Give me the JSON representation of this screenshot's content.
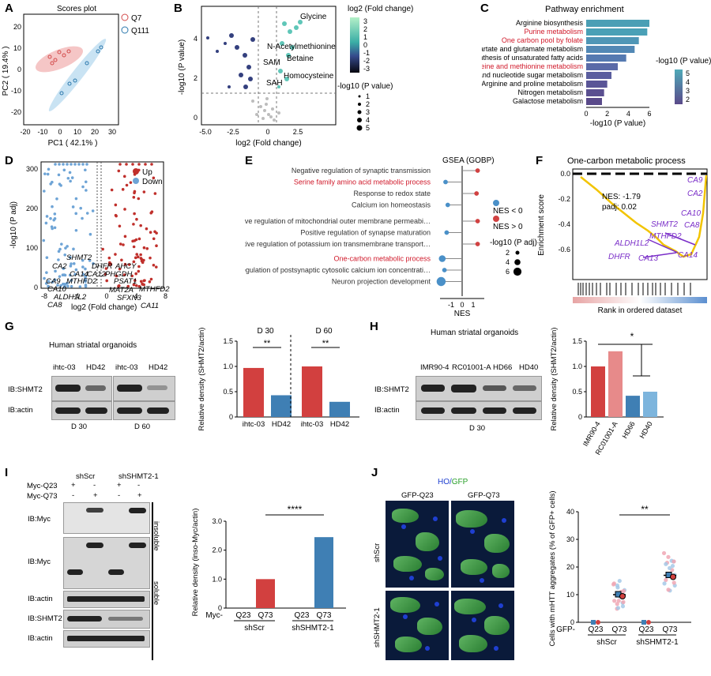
{
  "panels": {
    "a": "A",
    "b": "B",
    "c": "C",
    "d": "D",
    "e": "E",
    "f": "F",
    "g": "G",
    "h": "H",
    "i": "I",
    "j": "J"
  },
  "A": {
    "title": "Scores plot",
    "xlabel": "PC1 ( 42.1% )",
    "ylabel": "PC2 ( 19.4% )",
    "legend": [
      "Q7",
      "Q111"
    ],
    "colors": {
      "q7": "#e07a7a",
      "q111": "#5aa7d6"
    },
    "xticks": [
      "-20",
      "-10",
      "0",
      "10",
      "20",
      "30"
    ],
    "yticks": [
      "-20",
      "-10",
      "0",
      "10",
      "20"
    ]
  },
  "B": {
    "xlabel": "log2 (Fold change)",
    "ylabel": "-log10 (P value)",
    "xticks": [
      "-5.0",
      "-2.5",
      "0",
      "2.5"
    ],
    "yticks": [
      "0",
      "2",
      "4"
    ],
    "labels": [
      "Glycine",
      "N-Acetylmethionine",
      "Betaine",
      "SAM",
      "Homocysteine",
      "SAH"
    ],
    "colorbar_title": "log2 (Fold change)",
    "colorbar_ticks": [
      "3",
      "2",
      "1",
      "0",
      "-1",
      "-2",
      "-3"
    ],
    "size_title": "-log10 (P value)",
    "size_ticks": [
      "1",
      "2",
      "3",
      "4",
      "5"
    ]
  },
  "C": {
    "title": "Pathway enrichment",
    "xlabel": "-log10 (P value)",
    "xticks": [
      "0",
      "2",
      "4",
      "6"
    ],
    "legend_title": "-log10 (P value)",
    "legend_ticks": [
      "5",
      "4",
      "3",
      "2"
    ],
    "red_color": "#d0192a"
  },
  "D": {
    "xlabel": "log2 (Fold change)",
    "ylabel": "-log10 (P adj)",
    "xticks": [
      "-8",
      "-4",
      "0",
      "4",
      "8"
    ],
    "yticks": [
      "0",
      "100",
      "200",
      "300"
    ],
    "legend": [
      "Up",
      "Down"
    ],
    "genes": [
      "SHMT2",
      "CA2",
      "CA14",
      "CA12",
      "CA9",
      "MTHFD2",
      "CA10",
      "ALDH1L2",
      "CA8",
      "DHFR",
      "AHCY",
      "PHGDH",
      "MAT2A",
      "PSAT1",
      "MTHFD2L",
      "CA11",
      "SFXN3"
    ]
  },
  "E": {
    "title": "GSEA (GOBP)",
    "xlabel": "NES",
    "xticks": [
      "-1",
      "0",
      "1"
    ],
    "legend_neg": "NES < 0",
    "legend_pos": "NES > 0",
    "size_title": "-log10 (P adj)",
    "size_ticks": [
      "2",
      "4",
      "6"
    ]
  },
  "F": {
    "title": "One-carbon metabolic process",
    "ylabel": "Enrichment score",
    "xlabel": "Rank in ordered dataset",
    "stats": [
      "NES: -1.79",
      "padj: 0.02"
    ],
    "yticks": [
      "0.0",
      "-0.2",
      "-0.4",
      "-0.6"
    ],
    "genes": [
      "CA9",
      "CA2",
      "CA10",
      "SHMT2",
      "CA8",
      "MTHFD2",
      "ALDH1L2",
      "CA14",
      "DHFR",
      "CA13"
    ]
  },
  "G": {
    "title": "Human striatal organoids",
    "lanes_d30": [
      "ihtc-03",
      "HD42"
    ],
    "lanes_d60": [
      "ihtc-03",
      "HD42"
    ],
    "ib": [
      "IB:SHMT2",
      "IB:actin"
    ],
    "days": [
      "D 30",
      "D 60"
    ],
    "ylabel": "Relative density (SHMT2/actin)",
    "yticks": [
      "0",
      "0.5",
      "1.0",
      "1.5"
    ],
    "sig": [
      "**",
      "**"
    ]
  },
  "H": {
    "title": "Human striatal organoids",
    "lanes": [
      "IMR90-4",
      "RC01001-A",
      "HD66",
      "HD40"
    ],
    "ib": [
      "IB:SHMT2",
      "IB:actin"
    ],
    "day": "D 30",
    "ylabel": "Relative density (SHMT2/actin)",
    "yticks": [
      "0",
      "0.5",
      "1.0",
      "1.5"
    ],
    "sig": "*"
  },
  "I": {
    "groups": [
      "shScr",
      "shSHMT2-1"
    ],
    "rows": [
      "Myc-Q23",
      "Myc-Q73"
    ],
    "pm": [
      "+",
      "-",
      "+",
      "-",
      "-",
      "+",
      "-",
      "+"
    ],
    "ib": [
      "IB:Myc",
      "IB:Myc",
      "IB:actin",
      "IB:SHMT2",
      "IB:actin"
    ],
    "fractions": [
      "insoluble",
      "soluble"
    ],
    "ylabel": "Relative density (inso-Myc/actin)",
    "yticks": [
      "0",
      "1.0",
      "2.0",
      "3.0"
    ],
    "xgroups": [
      "Q23",
      "Q73",
      "Q23",
      "Q73"
    ],
    "prefix": "Myc-",
    "sig": "****"
  },
  "J": {
    "title_ho": "HO/",
    "title_gfp": "GFP",
    "cols": [
      "GFP-Q23",
      "GFP-Q73"
    ],
    "rows": [
      "shScr",
      "shSHMT2-1"
    ],
    "ylabel": "Cells with mHTT aggregates (% of GFP+ cells)",
    "yticks": [
      "0",
      "10",
      "20",
      "30",
      "40"
    ],
    "xgroups": [
      "Q23",
      "Q73",
      "Q23",
      "Q73"
    ],
    "prefix": "GFP-",
    "sig": "**"
  },
  "chart_data": [
    {
      "type": "bar",
      "title": "Pathway enrichment",
      "categories": [
        "Arginine biosynthesis",
        "Purine metabolism",
        "One carbon pool by folate",
        "Alanine, aspartate and glutamate metabolism",
        "Biosynthesis of unsaturated fatty acids",
        "Cysteine and methionine metabolism",
        "Amino sugar and nucleotide sugar metabolism",
        "Arginine and proline metabolism",
        "Nitrogen metabolism",
        "Galactose metabolism"
      ],
      "values": [
        6.0,
        5.8,
        5.0,
        4.6,
        3.8,
        3.0,
        2.4,
        2.0,
        1.7,
        1.5
      ],
      "highlight": [
        false,
        true,
        true,
        false,
        false,
        true,
        false,
        false,
        false,
        false
      ],
      "xlabel": "-log10 (P value)",
      "xlim": [
        0,
        6
      ]
    },
    {
      "type": "scatter",
      "title": "GSEA (GOBP)",
      "categories": [
        "Negative regulation of synaptic transmission",
        "Serine family amino acid metabolic process",
        "Response to redox state",
        "Calcium ion homeostasis",
        "Positive regulation of mitochondrial outer membrane permeabilization involved in apoptotic signaling pathway",
        "Positive regulation of synapse maturation",
        "Negative regulation of potassium ion transmembrane transporter activity",
        "One-carbon metabolic process",
        "Regulation of postsynaptic cytosolic calcium ion concentration",
        "Neuron projection development"
      ],
      "values": [
        1.4,
        -1.5,
        1.3,
        -1.3,
        1.4,
        -1.4,
        1.4,
        -1.8,
        -1.6,
        -1.9
      ],
      "sizes": [
        2,
        2,
        2,
        2,
        2,
        2,
        2,
        4,
        2,
        6
      ],
      "highlight": [
        false,
        true,
        false,
        false,
        false,
        false,
        false,
        true,
        false,
        false
      ],
      "xlabel": "NES",
      "xlim": [
        -2,
        2
      ]
    },
    {
      "type": "bar",
      "title": "G D30",
      "categories": [
        "ihtc-03",
        "HD42"
      ],
      "values": [
        0.97,
        0.43
      ],
      "ylim": [
        0,
        1.5
      ]
    },
    {
      "type": "bar",
      "title": "G D60",
      "categories": [
        "ihtc-03",
        "HD42"
      ],
      "values": [
        1.0,
        0.3
      ],
      "ylim": [
        0,
        1.5
      ]
    },
    {
      "type": "bar",
      "title": "H",
      "categories": [
        "IMR90-4",
        "RC01001-A",
        "HD66",
        "HD40"
      ],
      "values": [
        1.0,
        1.3,
        0.42,
        0.5
      ],
      "ylim": [
        0,
        1.5
      ]
    },
    {
      "type": "bar",
      "title": "I",
      "categories": [
        "Q23",
        "Q73",
        "Q23",
        "Q73"
      ],
      "values": [
        0.0,
        1.0,
        0.0,
        2.45
      ],
      "ylim": [
        0,
        3.0
      ]
    },
    {
      "type": "scatter",
      "title": "J",
      "categories": [
        "Q23",
        "Q73",
        "Q23",
        "Q73"
      ],
      "values": [
        0.0,
        10.0,
        0.0,
        17.0
      ],
      "ylim": [
        0,
        40
      ]
    }
  ]
}
